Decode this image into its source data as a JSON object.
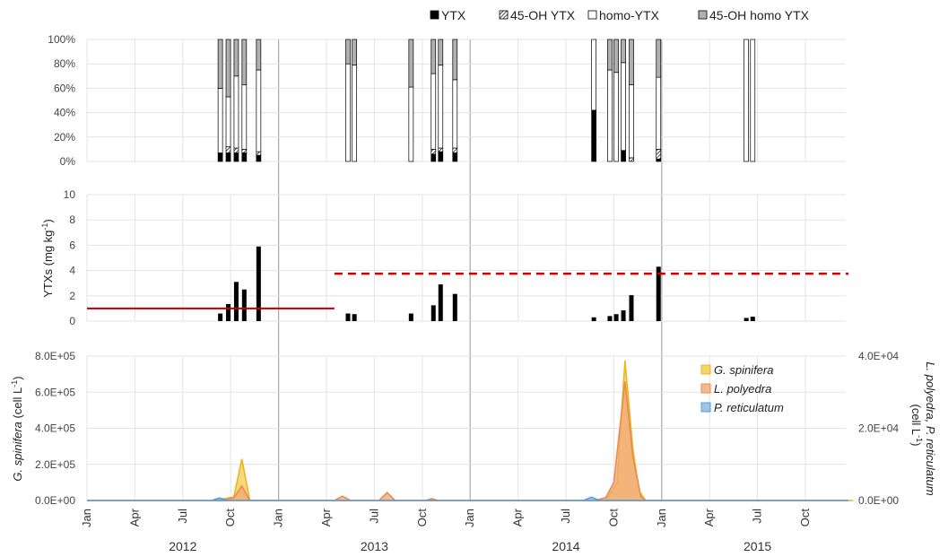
{
  "chart_data": [
    {
      "type": "bar",
      "panel": "composition",
      "stacked": true,
      "yticks": [
        "0%",
        "20%",
        "40%",
        "60%",
        "80%",
        "100%"
      ],
      "ylim": [
        0,
        100
      ],
      "legend_position": "top",
      "legend": [
        "YTX",
        "45-OH YTX",
        "homo-YTX",
        "45-OH homo YTX"
      ],
      "colors": {
        "YTX": "#000000",
        "45-OH YTX": "hatched",
        "homo-YTX": "#ffffff",
        "45-OH homo YTX": "#b0b0b0"
      },
      "bars": [
        {
          "t": 8.35,
          "YTX": 7,
          "OH": 0,
          "homo": 53,
          "OHhomo": 40
        },
        {
          "t": 8.85,
          "YTX": 7,
          "OH": 5,
          "homo": 41,
          "OHhomo": 47
        },
        {
          "t": 9.35,
          "YTX": 7,
          "OH": 4,
          "homo": 59,
          "OHhomo": 30
        },
        {
          "t": 9.85,
          "YTX": 7,
          "OH": 3,
          "homo": 53,
          "OHhomo": 37
        },
        {
          "t": 10.75,
          "YTX": 5,
          "OH": 3,
          "homo": 67,
          "OHhomo": 25
        },
        {
          "t": 16.35,
          "YTX": 0,
          "OH": 0,
          "homo": 80,
          "OHhomo": 20
        },
        {
          "t": 16.75,
          "YTX": 0,
          "OH": 0,
          "homo": 79,
          "OHhomo": 21
        },
        {
          "t": 20.3,
          "YTX": 0,
          "OH": 0,
          "homo": 61,
          "OHhomo": 39
        },
        {
          "t": 21.7,
          "YTX": 6,
          "OH": 4,
          "homo": 62,
          "OHhomo": 28
        },
        {
          "t": 22.15,
          "YTX": 8,
          "OH": 3,
          "homo": 68,
          "OHhomo": 21
        },
        {
          "t": 23.05,
          "YTX": 7,
          "OH": 4,
          "homo": 56,
          "OHhomo": 33
        },
        {
          "t": 31.75,
          "YTX": 42,
          "OH": 0,
          "homo": 58,
          "OHhomo": 0
        },
        {
          "t": 32.75,
          "YTX": 0,
          "OH": 0,
          "homo": 75,
          "OHhomo": 25
        },
        {
          "t": 33.15,
          "YTX": 0,
          "OH": 0,
          "homo": 73,
          "OHhomo": 27
        },
        {
          "t": 33.6,
          "YTX": 9,
          "OH": 0,
          "homo": 72,
          "OHhomo": 19
        },
        {
          "t": 34.1,
          "YTX": 0,
          "OH": 3,
          "homo": 60,
          "OHhomo": 37
        },
        {
          "t": 35.8,
          "YTX": 2,
          "OH": 8,
          "homo": 59,
          "OHhomo": 31
        },
        {
          "t": 41.3,
          "YTX": 0,
          "OH": 0,
          "homo": 100,
          "OHhomo": 0
        },
        {
          "t": 41.7,
          "YTX": 0,
          "OH": 0,
          "homo": 100,
          "OHhomo": 0
        }
      ]
    },
    {
      "type": "bar",
      "panel": "concentration",
      "ylabel": "YTXs (mg kg-1)",
      "ylim": [
        0,
        10
      ],
      "yticks": [
        "0",
        "2",
        "4",
        "6",
        "8",
        "10"
      ],
      "bars": [
        {
          "t": 8.35,
          "v": 0.6
        },
        {
          "t": 8.85,
          "v": 1.35
        },
        {
          "t": 9.35,
          "v": 3.1
        },
        {
          "t": 9.85,
          "v": 2.5
        },
        {
          "t": 10.75,
          "v": 5.9
        },
        {
          "t": 16.35,
          "v": 0.6
        },
        {
          "t": 16.75,
          "v": 0.55
        },
        {
          "t": 20.3,
          "v": 0.6
        },
        {
          "t": 21.7,
          "v": 1.25
        },
        {
          "t": 22.15,
          "v": 2.9
        },
        {
          "t": 23.05,
          "v": 2.15
        },
        {
          "t": 31.75,
          "v": 0.3
        },
        {
          "t": 32.75,
          "v": 0.4
        },
        {
          "t": 33.15,
          "v": 0.55
        },
        {
          "t": 33.6,
          "v": 0.85
        },
        {
          "t": 34.1,
          "v": 2.05
        },
        {
          "t": 35.8,
          "v": 4.3
        },
        {
          "t": 41.3,
          "v": 0.25
        },
        {
          "t": 41.7,
          "v": 0.35
        }
      ],
      "reference_lines": [
        {
          "style": "solid",
          "color": "#c00000",
          "value": 1.0,
          "t_start": 0,
          "t_end": 15.5
        },
        {
          "style": "dashed",
          "color": "#d00000",
          "value": 3.75,
          "t_start": 15.5,
          "t_end": 47.7
        }
      ]
    },
    {
      "type": "area",
      "panel": "cell densities",
      "ylabel_left": "G. spinifera (cell L-1)",
      "ylabel_right": "L. polyedra, P. reticulatum (cell L-1)",
      "yticks_left": [
        "0.0E+00",
        "2.0E+05",
        "4.0E+05",
        "6.0E+05",
        "8.0E+05"
      ],
      "yticks_right": [
        "0.0E+00",
        "2.0E+04",
        "4.0E+04"
      ],
      "ylim_left": [
        0,
        800000
      ],
      "ylim_right": [
        0,
        40000
      ],
      "legend_position": "top-right",
      "series": [
        {
          "name": "G. spinifera",
          "axis": "left",
          "color": "#f5c842",
          "t": [
            0,
            8,
            9.2,
            9.7,
            10.2,
            12,
            30,
            32.5,
            33.2,
            33.7,
            34.2,
            34.6,
            35.0,
            48
          ],
          "values": [
            0,
            0,
            20000,
            230000,
            0,
            0,
            0,
            0,
            100000,
            775000,
            280000,
            50000,
            0,
            0
          ]
        },
        {
          "name": "L. polyedra",
          "axis": "right",
          "color": "#f0a878",
          "t": [
            0,
            8.5,
            9.2,
            9.7,
            10.2,
            15.5,
            16.0,
            16.5,
            18.3,
            18.8,
            19.3,
            21.2,
            21.6,
            22.0,
            31.8,
            32.5,
            33.0,
            33.7,
            34.2,
            34.7,
            35.0,
            47.7
          ],
          "values": [
            0,
            0,
            800,
            4000,
            0,
            0,
            1200,
            0,
            0,
            2200,
            0,
            0,
            500,
            0,
            0,
            800,
            5000,
            33000,
            12000,
            1000,
            0,
            0
          ]
        },
        {
          "name": "P. reticulatum",
          "axis": "right",
          "color": "#8ab6e0",
          "t": [
            0,
            7.8,
            8.3,
            8.8,
            31.1,
            31.6,
            32.1,
            47.7
          ],
          "values": [
            0,
            0,
            700,
            0,
            0,
            900,
            0,
            0
          ]
        }
      ]
    }
  ],
  "x_axis": {
    "month_ticks": [
      {
        "t": 0,
        "label": "Jan"
      },
      {
        "t": 3,
        "label": "Apr"
      },
      {
        "t": 6,
        "label": "Jul"
      },
      {
        "t": 9,
        "label": "Oct"
      },
      {
        "t": 12,
        "label": "Jan"
      },
      {
        "t": 15,
        "label": "Apr"
      },
      {
        "t": 18,
        "label": "Jul"
      },
      {
        "t": 21,
        "label": "Oct"
      },
      {
        "t": 24,
        "label": "Jan"
      },
      {
        "t": 27,
        "label": "Apr"
      },
      {
        "t": 30,
        "label": "Jul"
      },
      {
        "t": 33,
        "label": "Oct"
      },
      {
        "t": 36,
        "label": "Jan"
      },
      {
        "t": 39,
        "label": "Apr"
      },
      {
        "t": 42,
        "label": "Jul"
      },
      {
        "t": 45,
        "label": "Oct"
      }
    ],
    "years": [
      {
        "t": 6,
        "label": "2012"
      },
      {
        "t": 18,
        "label": "2013"
      },
      {
        "t": 30,
        "label": "2014"
      },
      {
        "t": 42,
        "label": "2015"
      }
    ],
    "year_dividers": [
      12,
      24,
      36
    ]
  }
}
